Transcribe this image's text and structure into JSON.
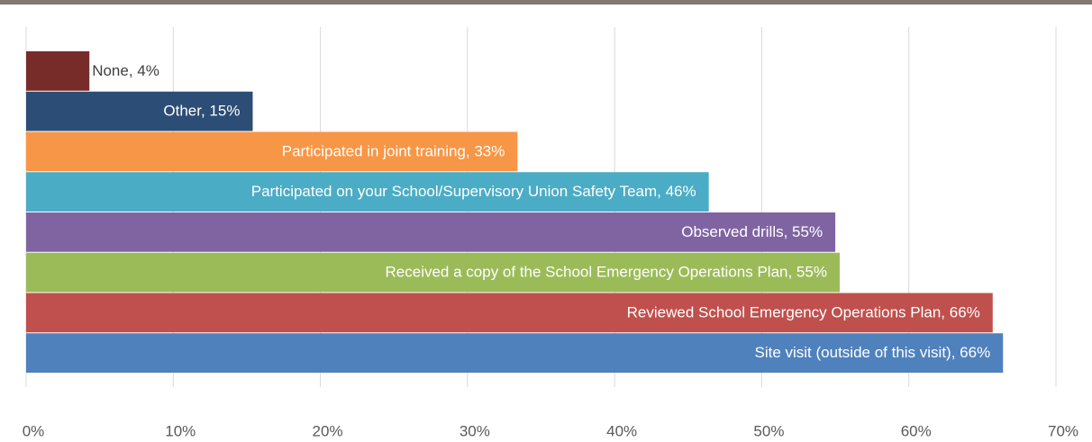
{
  "chart_data": {
    "type": "bar",
    "orientation": "horizontal",
    "values": [
      4.3,
      15.4,
      33.4,
      46.4,
      55.0,
      55.3,
      65.7,
      66.4
    ],
    "value_labels": [
      "None, 4%",
      "Other, 15%",
      "Participated in joint training, 33%",
      "Participated on your School/Supervisory Union Safety Team, 46%",
      "Observed drills, 55%",
      "Received a copy of the School Emergency Operations Plan, 55%",
      "Reviewed School Emergency Operations Plan, 66%",
      "Site visit (outside of this visit), 66%"
    ],
    "colors": [
      "#772c2a",
      "#2c4d75",
      "#f79646",
      "#4bacc6",
      "#8064a2",
      "#9bbb59",
      "#c0504d",
      "#4f81bd"
    ],
    "xlim": [
      0,
      70
    ],
    "xticks": [
      {
        "value": 0,
        "label": "0%"
      },
      {
        "value": 10,
        "label": "10%"
      },
      {
        "value": 20,
        "label": "20%"
      },
      {
        "value": 30,
        "label": "30%"
      },
      {
        "value": 40,
        "label": "40%"
      },
      {
        "value": 50,
        "label": "50%"
      },
      {
        "value": 60,
        "label": "60%"
      },
      {
        "value": 70,
        "label": "70%"
      }
    ],
    "grid": true
  }
}
